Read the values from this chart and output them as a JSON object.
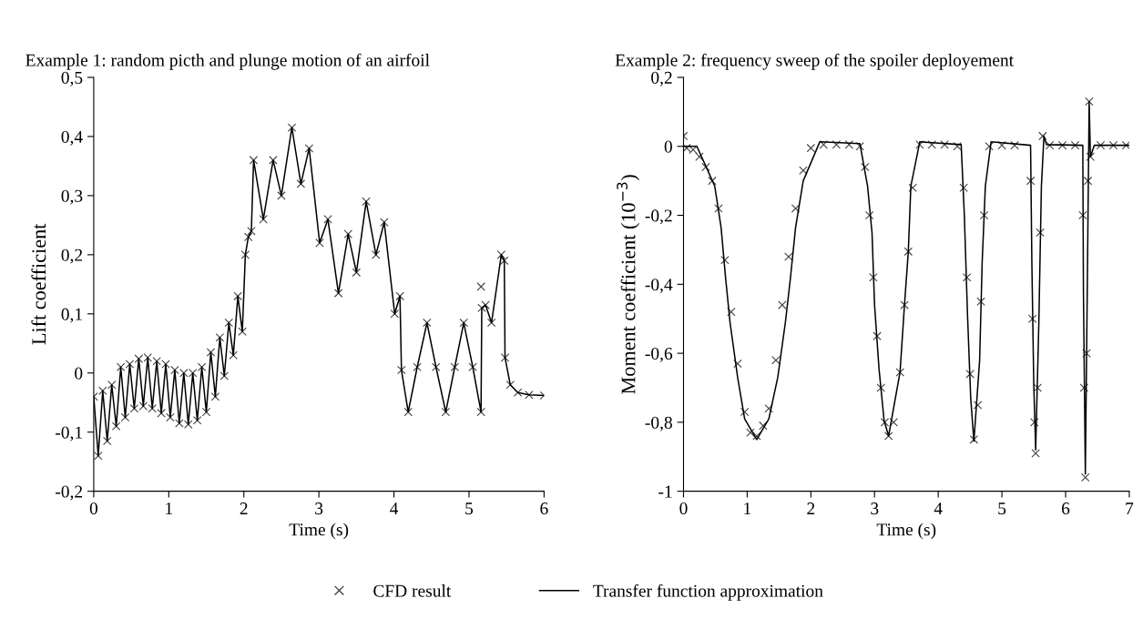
{
  "chart_data": [
    {
      "type": "line",
      "title": "Example 1: random picth and plunge motion of an airfoil",
      "xlabel": "Time (s)",
      "ylabel": "Lift coefficient",
      "xlim": [
        0,
        6
      ],
      "xticks": [
        0,
        1,
        2,
        3,
        4,
        5,
        6
      ],
      "ylim": [
        -0.2,
        0.5
      ],
      "yticks": [
        {
          "value": -0.2,
          "label": "-0,2"
        },
        {
          "value": -0.1,
          "label": "-0,1"
        },
        0,
        {
          "value": 0.1,
          "label": "0,1"
        },
        {
          "value": 0.2,
          "label": "0,2"
        },
        {
          "value": 0.3,
          "label": "0,3"
        },
        {
          "value": 0.4,
          "label": "0,4"
        },
        {
          "value": 0.5,
          "label": "0,5"
        }
      ],
      "legend": "bottom",
      "series": [
        {
          "name": "CFD result",
          "type": "scatter",
          "marker": "cross",
          "color": "#404040",
          "x": [
            0,
            0.06,
            0.12,
            0.18,
            0.24,
            0.3,
            0.36,
            0.42,
            0.48,
            0.54,
            0.6,
            0.66,
            0.72,
            0.78,
            0.84,
            0.9,
            0.96,
            1.02,
            1.08,
            1.14,
            1.2,
            1.26,
            1.32,
            1.38,
            1.44,
            1.5,
            1.56,
            1.62,
            1.68,
            1.74,
            1.8,
            1.86,
            1.92,
            1.98,
            2.02,
            2.06,
            2.1,
            2.13,
            2.26,
            2.39,
            2.5,
            2.64,
            2.76,
            2.87,
            3.01,
            3.12,
            3.26,
            3.39,
            3.5,
            3.63,
            3.76,
            3.87,
            4.01,
            4.08,
            4.1,
            4.19,
            4.31,
            4.44,
            4.56,
            4.69,
            4.81,
            4.93,
            5.05,
            5.16,
            5.16,
            5.17,
            5.22,
            5.3,
            5.43,
            5.47,
            5.48,
            5.55,
            5.65,
            5.8,
            6.0
          ],
          "values": [
            -0.04,
            -0.14,
            -0.03,
            -0.115,
            -0.02,
            -0.09,
            0.01,
            -0.075,
            0.015,
            -0.06,
            0.024,
            -0.056,
            0.026,
            -0.06,
            0.02,
            -0.068,
            0.015,
            -0.075,
            0.005,
            -0.085,
            0.0,
            -0.087,
            0.0,
            -0.08,
            0.01,
            -0.066,
            0.035,
            -0.04,
            0.06,
            -0.005,
            0.085,
            0.03,
            0.13,
            0.07,
            0.2,
            0.23,
            0.24,
            0.36,
            0.26,
            0.36,
            0.3,
            0.415,
            0.32,
            0.38,
            0.22,
            0.26,
            0.135,
            0.235,
            0.17,
            0.29,
            0.2,
            0.255,
            0.1,
            0.13,
            0.005,
            -0.066,
            0.01,
            0.085,
            0.01,
            -0.066,
            0.01,
            0.085,
            0.01,
            -0.066,
            0.146,
            0.11,
            0.115,
            0.085,
            0.2,
            0.19,
            0.026,
            -0.02,
            -0.033,
            -0.037,
            -0.038
          ]
        },
        {
          "name": "Transfer function approximation",
          "line_style": "solid",
          "color": "#000000",
          "x": [
            0,
            0.06,
            0.12,
            0.18,
            0.24,
            0.3,
            0.36,
            0.42,
            0.48,
            0.54,
            0.6,
            0.66,
            0.72,
            0.78,
            0.84,
            0.9,
            0.96,
            1.02,
            1.08,
            1.14,
            1.2,
            1.26,
            1.32,
            1.38,
            1.44,
            1.5,
            1.56,
            1.62,
            1.68,
            1.74,
            1.8,
            1.86,
            1.92,
            1.98,
            2.02,
            2.06,
            2.1,
            2.13,
            2.26,
            2.39,
            2.5,
            2.64,
            2.76,
            2.87,
            3.01,
            3.12,
            3.26,
            3.39,
            3.5,
            3.63,
            3.76,
            3.87,
            4.01,
            4.08,
            4.1,
            4.19,
            4.31,
            4.44,
            4.56,
            4.69,
            4.81,
            4.93,
            5.05,
            5.16,
            5.17,
            5.22,
            5.3,
            5.43,
            5.47,
            5.48,
            5.55,
            5.65,
            5.8,
            6.0
          ],
          "values": [
            -0.04,
            -0.14,
            -0.03,
            -0.115,
            -0.02,
            -0.09,
            0.01,
            -0.075,
            0.015,
            -0.06,
            0.024,
            -0.056,
            0.026,
            -0.06,
            0.02,
            -0.068,
            0.015,
            -0.075,
            0.005,
            -0.085,
            0.0,
            -0.087,
            0.0,
            -0.08,
            0.01,
            -0.066,
            0.035,
            -0.04,
            0.06,
            -0.005,
            0.085,
            0.03,
            0.13,
            0.07,
            0.2,
            0.23,
            0.24,
            0.36,
            0.26,
            0.36,
            0.3,
            0.415,
            0.32,
            0.38,
            0.22,
            0.26,
            0.135,
            0.235,
            0.17,
            0.29,
            0.2,
            0.255,
            0.1,
            0.13,
            0.005,
            -0.066,
            0.01,
            0.085,
            0.01,
            -0.066,
            0.01,
            0.085,
            0.01,
            -0.066,
            0.11,
            0.115,
            0.085,
            0.2,
            0.19,
            0.026,
            -0.02,
            -0.033,
            -0.037,
            -0.038
          ]
        }
      ]
    },
    {
      "type": "line",
      "title": "Example 2: frequency sweep of the spoiler deployement",
      "xlabel": "Time (s)",
      "ylabel": "Moment coefficient (10$^{−3}$)",
      "xlim": [
        0,
        7
      ],
      "xticks": [
        0,
        1,
        2,
        3,
        4,
        5,
        6,
        7
      ],
      "ylim": [
        -1,
        0.2
      ],
      "yticks": [
        -1,
        {
          "value": -0.8,
          "label": "-0,8"
        },
        {
          "value": -0.6,
          "label": "-0,6"
        },
        {
          "value": -0.4,
          "label": "-0,4"
        },
        {
          "value": -0.2,
          "label": "-0,2"
        },
        0,
        {
          "value": 0.2,
          "label": "0,2"
        }
      ],
      "series": [
        {
          "type": "scatter",
          "marker": "cross",
          "color": "#404040",
          "x": [
            0,
            0.05,
            0.15,
            0.25,
            0.35,
            0.45,
            0.55,
            0.65,
            0.75,
            0.85,
            0.96,
            1.05,
            1.15,
            1.25,
            1.34,
            1.45,
            1.55,
            1.65,
            1.76,
            1.88,
            2.0,
            2.2,
            2.4,
            2.6,
            2.77,
            2.85,
            2.92,
            2.98,
            3.04,
            3.1,
            3.16,
            3.22,
            3.3,
            3.4,
            3.47,
            3.53,
            3.6,
            3.71,
            3.9,
            4.1,
            4.3,
            4.4,
            4.45,
            4.5,
            4.56,
            4.62,
            4.67,
            4.72,
            4.8,
            5.0,
            5.2,
            5.45,
            5.48,
            5.51,
            5.53,
            5.56,
            5.6,
            5.64,
            5.75,
            5.95,
            6.15,
            6.27,
            6.29,
            6.31,
            6.33,
            6.35,
            6.37,
            6.39,
            6.55,
            6.75,
            6.95
          ],
          "values": [
            0.03,
            -0.005,
            -0.01,
            -0.03,
            -0.06,
            -0.1,
            -0.18,
            -0.33,
            -0.48,
            -0.63,
            -0.77,
            -0.83,
            -0.84,
            -0.81,
            -0.76,
            -0.62,
            -0.46,
            -0.32,
            -0.18,
            -0.07,
            -0.005,
            0.005,
            0.005,
            0.005,
            0.0,
            -0.06,
            -0.2,
            -0.38,
            -0.55,
            -0.7,
            -0.8,
            -0.84,
            -0.8,
            -0.655,
            -0.46,
            -0.305,
            -0.12,
            0.005,
            0.005,
            0.005,
            0.0,
            -0.12,
            -0.38,
            -0.66,
            -0.85,
            -0.75,
            -0.45,
            -0.2,
            0.0,
            0.003,
            0.003,
            -0.1,
            -0.5,
            -0.8,
            -0.89,
            -0.7,
            -0.25,
            0.03,
            0.003,
            0.003,
            0.003,
            -0.2,
            -0.7,
            -0.96,
            -0.6,
            -0.1,
            0.13,
            -0.03,
            0.003,
            0.003,
            0.003
          ]
        },
        {
          "line_style": "solid",
          "color": "#000000",
          "x": [
            0,
            0.21,
            0.49,
            0.59,
            0.66,
            0.73,
            0.85,
            0.96,
            1.15,
            1.34,
            1.48,
            1.6,
            1.68,
            1.76,
            1.88,
            2.14,
            2.77,
            2.89,
            2.96,
            3.0,
            3.07,
            3.15,
            3.22,
            3.4,
            3.47,
            3.53,
            3.57,
            3.71,
            4.36,
            4.41,
            4.46,
            4.51,
            4.56,
            4.65,
            4.69,
            4.74,
            4.83,
            5.45,
            5.47,
            5.5,
            5.53,
            5.58,
            5.62,
            5.66,
            5.7,
            6.27,
            6.28,
            6.31,
            6.34,
            6.37,
            6.39,
            6.45,
            7.0
          ],
          "values": [
            0,
            0,
            -0.115,
            -0.235,
            -0.38,
            -0.51,
            -0.67,
            -0.79,
            -0.85,
            -0.79,
            -0.67,
            -0.51,
            -0.38,
            -0.235,
            -0.1,
            0.013,
            0.008,
            -0.115,
            -0.25,
            -0.46,
            -0.645,
            -0.795,
            -0.84,
            -0.655,
            -0.46,
            -0.305,
            -0.115,
            0.013,
            0.005,
            -0.2,
            -0.49,
            -0.73,
            -0.855,
            -0.62,
            -0.335,
            -0.115,
            0.013,
            0.003,
            -0.335,
            -0.69,
            -0.88,
            -0.51,
            -0.115,
            0.03,
            0.005,
            0.003,
            -0.42,
            -0.95,
            -0.42,
            0.13,
            -0.03,
            0.003,
            0.003
          ]
        }
      ]
    }
  ]
}
